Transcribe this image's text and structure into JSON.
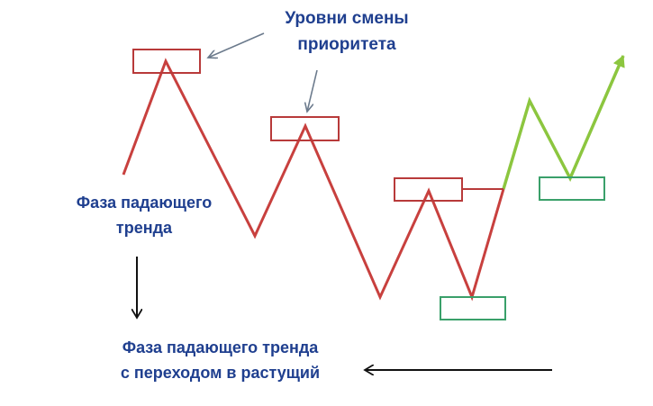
{
  "labels": {
    "priority_levels": [
      "Уровни смены",
      "приоритета"
    ],
    "falling_phase": [
      "Фаза падающего",
      "тренда"
    ],
    "transition_phase": [
      "Фаза падающего тренда",
      "с переходом в растущий"
    ]
  },
  "colors": {
    "falling_line": "#c8403e",
    "rising_line": "#8cc63f",
    "red_box": "#b83a3a",
    "green_box": "#3aa06a",
    "text": "#1f3f8f",
    "pointer_arrow": "#6b7a8c",
    "black_arrow": "#111111"
  }
}
